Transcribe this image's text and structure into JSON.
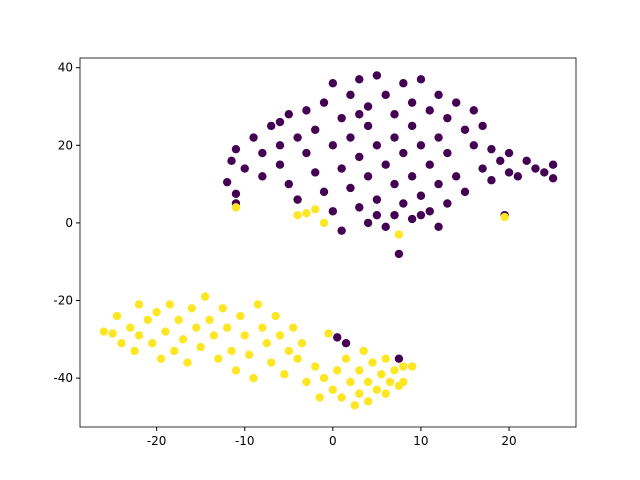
{
  "chart_data": {
    "type": "scatter",
    "xlim": [
      -28.7,
      27.6
    ],
    "ylim": [
      -52.6,
      42.5
    ],
    "xticks": [
      -20,
      -10,
      0,
      10,
      20
    ],
    "yticks": [
      -40,
      -20,
      0,
      20,
      40
    ],
    "series": [
      {
        "color": "#440154",
        "x": [
          -12,
          -11.5,
          -11,
          -10,
          -9,
          -8,
          -8,
          -7,
          -6,
          -6,
          -5,
          -5,
          -4,
          -4,
          -3,
          -3,
          -2,
          -2,
          -1,
          -1,
          0,
          0,
          0,
          1,
          1,
          1,
          2,
          2,
          2,
          3,
          3,
          3,
          4,
          4,
          4,
          4,
          5,
          5,
          5,
          6,
          6,
          6,
          7,
          7,
          7,
          7,
          8,
          8,
          8,
          9,
          9,
          9,
          9,
          10,
          10,
          10,
          11,
          11,
          11,
          12,
          12,
          12,
          13,
          13,
          13,
          14,
          14,
          15,
          15,
          16,
          16,
          17,
          17,
          18,
          18,
          19,
          20,
          20,
          21,
          22,
          23,
          24,
          25,
          25,
          -11,
          -11,
          19.5,
          7.5,
          7.5,
          0.5,
          1.5,
          10,
          12,
          5,
          -6,
          3
        ],
        "values": [
          10.5,
          16,
          19,
          14,
          22,
          18,
          12,
          25,
          20,
          15,
          28,
          10,
          22,
          6,
          18,
          29,
          13,
          24,
          31,
          8,
          20,
          36,
          3,
          27,
          14,
          -2,
          33,
          22,
          9,
          37,
          17,
          4,
          30,
          25,
          12,
          0,
          38,
          20,
          6,
          33,
          15,
          -1,
          28,
          22,
          10,
          2,
          36,
          18,
          5,
          31,
          25,
          12,
          1,
          37,
          20,
          7,
          29,
          15,
          3,
          33,
          22,
          10,
          27,
          18,
          5,
          31,
          12,
          24,
          8,
          20,
          29,
          14,
          25,
          11,
          19,
          16,
          13,
          18,
          12,
          16,
          14,
          13,
          15,
          11.5,
          7.5,
          5,
          2,
          -8,
          -35,
          -29.5,
          -31,
          2,
          -1,
          2,
          26,
          28
        ]
      },
      {
        "color": "#fde725",
        "x": [
          -26,
          -25,
          -24.5,
          -24,
          -23,
          -22.5,
          -22,
          -22,
          -21,
          -20.5,
          -20,
          -19.5,
          -19,
          -18.5,
          -18,
          -17.5,
          -17,
          -16.5,
          -16,
          -15.5,
          -15,
          -14.5,
          -14,
          -13.5,
          -13,
          -12.5,
          -12,
          -11.5,
          -11,
          -10.5,
          -10,
          -9.5,
          -9,
          -8.5,
          -8,
          -7.5,
          -7,
          -6.5,
          -6,
          -5.5,
          -5,
          -4.5,
          -4,
          -3.5,
          -3,
          -2,
          -1,
          -0.5,
          0,
          0.5,
          1,
          1.5,
          2,
          2.5,
          3,
          3,
          3.5,
          4,
          4,
          4.5,
          5,
          5.5,
          6,
          6,
          6.5,
          7,
          7.5,
          8,
          8,
          9,
          -11,
          -4,
          -3,
          -2,
          -1,
          7.5,
          19.5,
          -1.5
        ],
        "values": [
          -28,
          -28.5,
          -24,
          -31,
          -27,
          -33,
          -21,
          -29,
          -25,
          -31,
          -23,
          -35,
          -28,
          -21,
          -33,
          -25,
          -30,
          -36,
          -22,
          -27,
          -32,
          -19,
          -25,
          -29,
          -35,
          -22,
          -27,
          -33,
          -38,
          -24,
          -29,
          -34,
          -40,
          -21,
          -27,
          -31,
          -36,
          -24,
          -29,
          -39,
          -33,
          -27,
          -35,
          -31,
          -41,
          -37,
          -40,
          -28.5,
          -43,
          -38,
          -45,
          -35,
          -41,
          -47,
          -38,
          -44,
          -33,
          -41,
          -46,
          -36,
          -43,
          -39,
          -35,
          -44,
          -41,
          -38,
          -42,
          -37,
          -41,
          -37,
          4,
          2,
          2.5,
          3.5,
          0,
          -3,
          1.5,
          -45
        ]
      }
    ]
  }
}
